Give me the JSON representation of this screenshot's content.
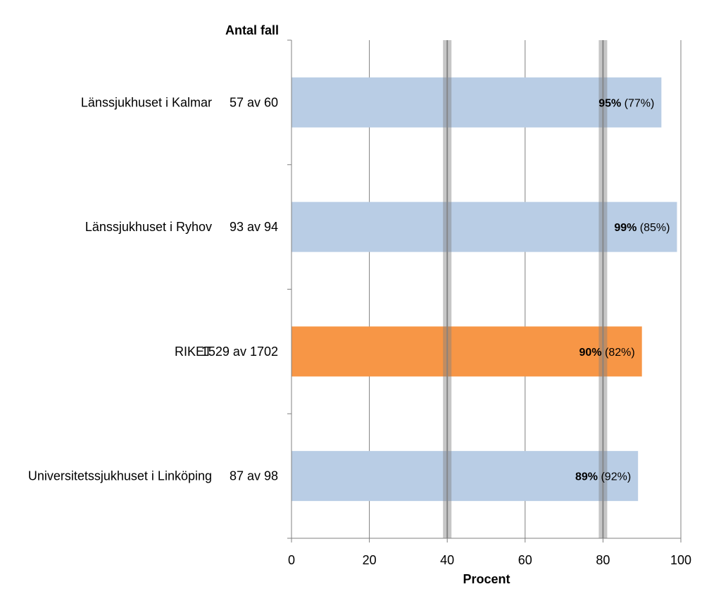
{
  "chart_data": {
    "type": "bar",
    "orientation": "horizontal",
    "column_header": "Antal fall",
    "xlabel": "Procent",
    "xlim": [
      0,
      100
    ],
    "x_ticks": [
      0,
      20,
      40,
      60,
      80,
      100
    ],
    "grid": true,
    "reference_lines": [
      40,
      80
    ],
    "colors": {
      "default": "#b9cde5",
      "highlight": "#f79646",
      "reference": "#808080",
      "grid": "#808080"
    },
    "bars": [
      {
        "category": "Länssjukhuset i Kalmar",
        "count": "57 av 60",
        "value": 95,
        "value_label": "95%",
        "prev_label": "(77%)",
        "highlight": false
      },
      {
        "category": "Länssjukhuset i Ryhov",
        "count": "93 av 94",
        "value": 99,
        "value_label": "99%",
        "prev_label": "(85%)",
        "highlight": false
      },
      {
        "category": "RIKET",
        "count": "1529 av 1702",
        "value": 90,
        "value_label": "90%",
        "prev_label": "(82%)",
        "highlight": true
      },
      {
        "category": "Universitetssjukhuset i Linköping",
        "count": "87 av 98",
        "value": 89,
        "value_label": "89%",
        "prev_label": "(92%)",
        "highlight": false
      }
    ]
  }
}
